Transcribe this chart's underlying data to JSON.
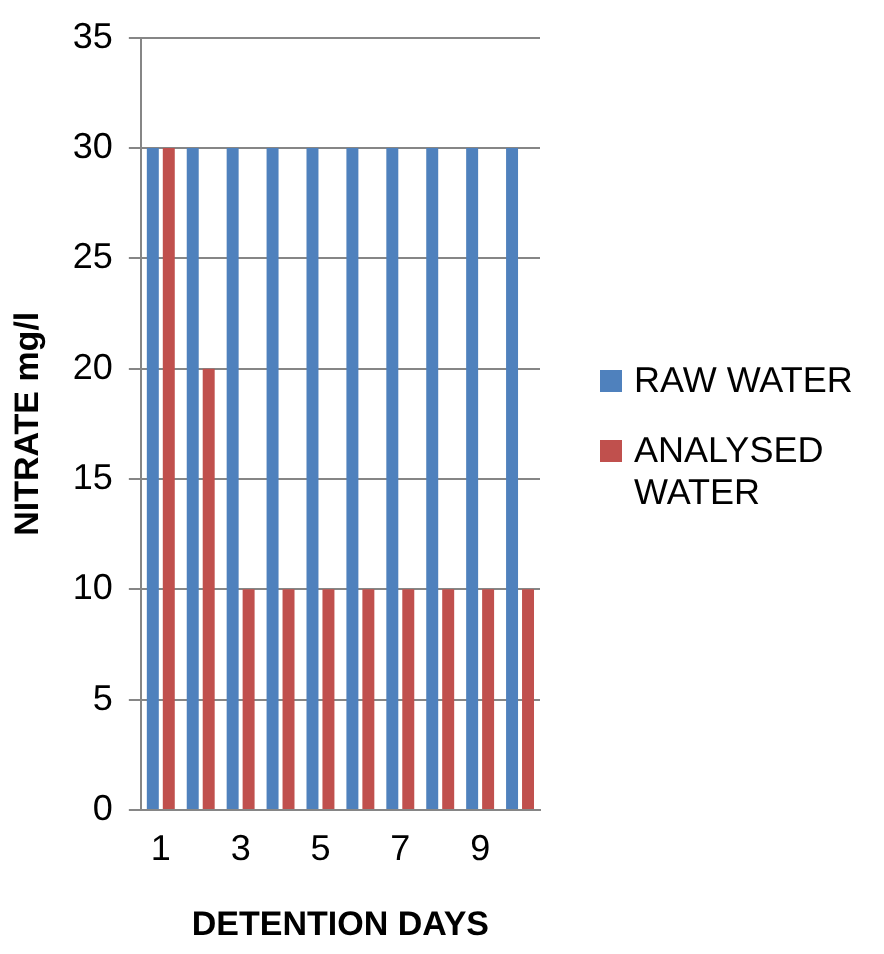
{
  "chart_data": {
    "type": "bar",
    "xlabel": "DETENTION DAYS",
    "ylabel": "NITRATE mg/l",
    "categories": [
      "1",
      null,
      "3",
      null,
      "5",
      null,
      "7",
      null,
      "9",
      null
    ],
    "series": [
      {
        "name": "RAW WATER",
        "color": "#4f81bd",
        "values": [
          30,
          30,
          30,
          30,
          30,
          30,
          30,
          30,
          30,
          30
        ]
      },
      {
        "name": "ANALYSED WATER",
        "color": "#c0504d",
        "values": [
          30,
          20,
          10,
          10,
          10,
          10,
          10,
          10,
          10,
          10
        ]
      }
    ],
    "ylim": [
      0,
      35
    ],
    "yticks": [
      0,
      5,
      10,
      15,
      20,
      25,
      30,
      35
    ],
    "grid": "y",
    "legend": "right"
  }
}
